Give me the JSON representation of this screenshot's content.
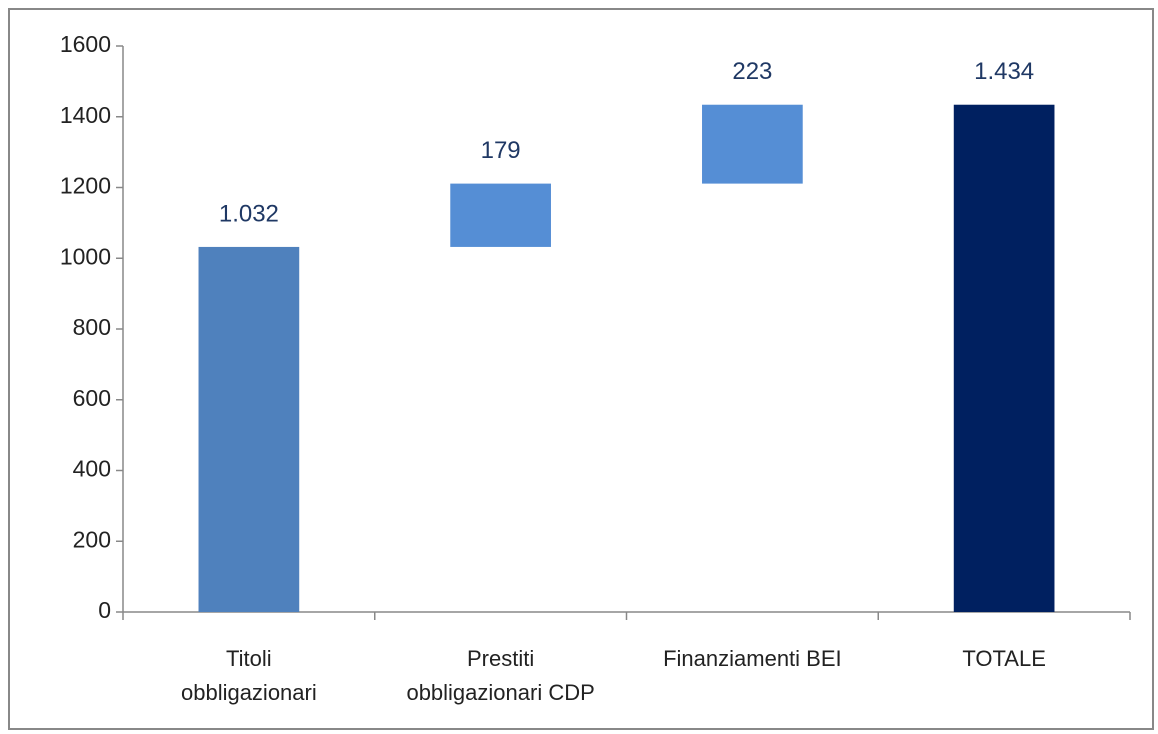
{
  "chart_data": {
    "type": "waterfall",
    "categories": [
      [
        "Titoli",
        "obbligazionari"
      ],
      [
        "Prestiti",
        "obbligazionari CDP"
      ],
      [
        "Finanziamenti BEI"
      ],
      [
        "TOTALE"
      ]
    ],
    "values": [
      1032,
      179,
      223,
      1434
    ],
    "value_labels": [
      "1.032",
      "179",
      "223",
      "1.434"
    ],
    "colors": [
      "#4f81bd",
      "#558ed5",
      "#558ed5",
      "#002060"
    ],
    "totals": [
      3
    ],
    "ylim": [
      0,
      1600
    ],
    "yticks": [
      0,
      200,
      400,
      600,
      800,
      1000,
      1200,
      1400,
      1600
    ],
    "grid": false
  }
}
